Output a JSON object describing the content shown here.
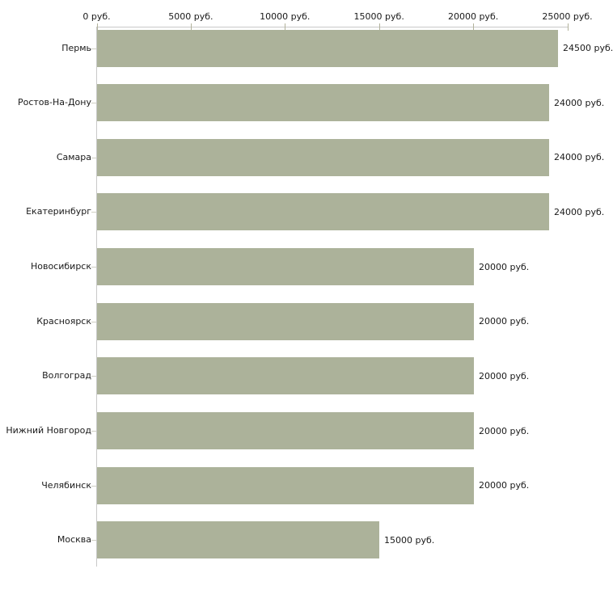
{
  "chart_data": {
    "type": "bar",
    "orientation": "horizontal",
    "title": "",
    "categories": [
      "Пермь",
      "Ростов-На-Дону",
      "Самара",
      "Екатеринбург",
      "Новосибирск",
      "Красноярск",
      "Волгоград",
      "Нижний Новгород",
      "Челябинск",
      "Москва"
    ],
    "values": [
      24500,
      24000,
      24000,
      24000,
      20000,
      20000,
      20000,
      20000,
      20000,
      15000
    ],
    "value_labels": [
      "24500 руб.",
      "24000 руб.",
      "24000 руб.",
      "24000 руб.",
      "20000 руб.",
      "20000 руб.",
      "20000 руб.",
      "20000 руб.",
      "20000 руб.",
      "15000 руб."
    ],
    "unit": "руб.",
    "x_axis": {
      "position": "top",
      "range": [
        0,
        25000
      ],
      "tick_values": [
        0,
        5000,
        10000,
        15000,
        20000,
        25000
      ],
      "tick_labels": [
        "0 руб.",
        "5000 руб.",
        "10000 руб.",
        "15000 руб.",
        "20000 руб.",
        "25000 руб."
      ]
    },
    "grid": "off",
    "legend": "none",
    "colors": {
      "bar": "#acb29a",
      "axis_line": "#c9c9c9",
      "axis_tick": "#b2b29b",
      "row_tick": "#cfcfc4",
      "text": "#1a1a1a",
      "background": "#ffffff"
    }
  }
}
